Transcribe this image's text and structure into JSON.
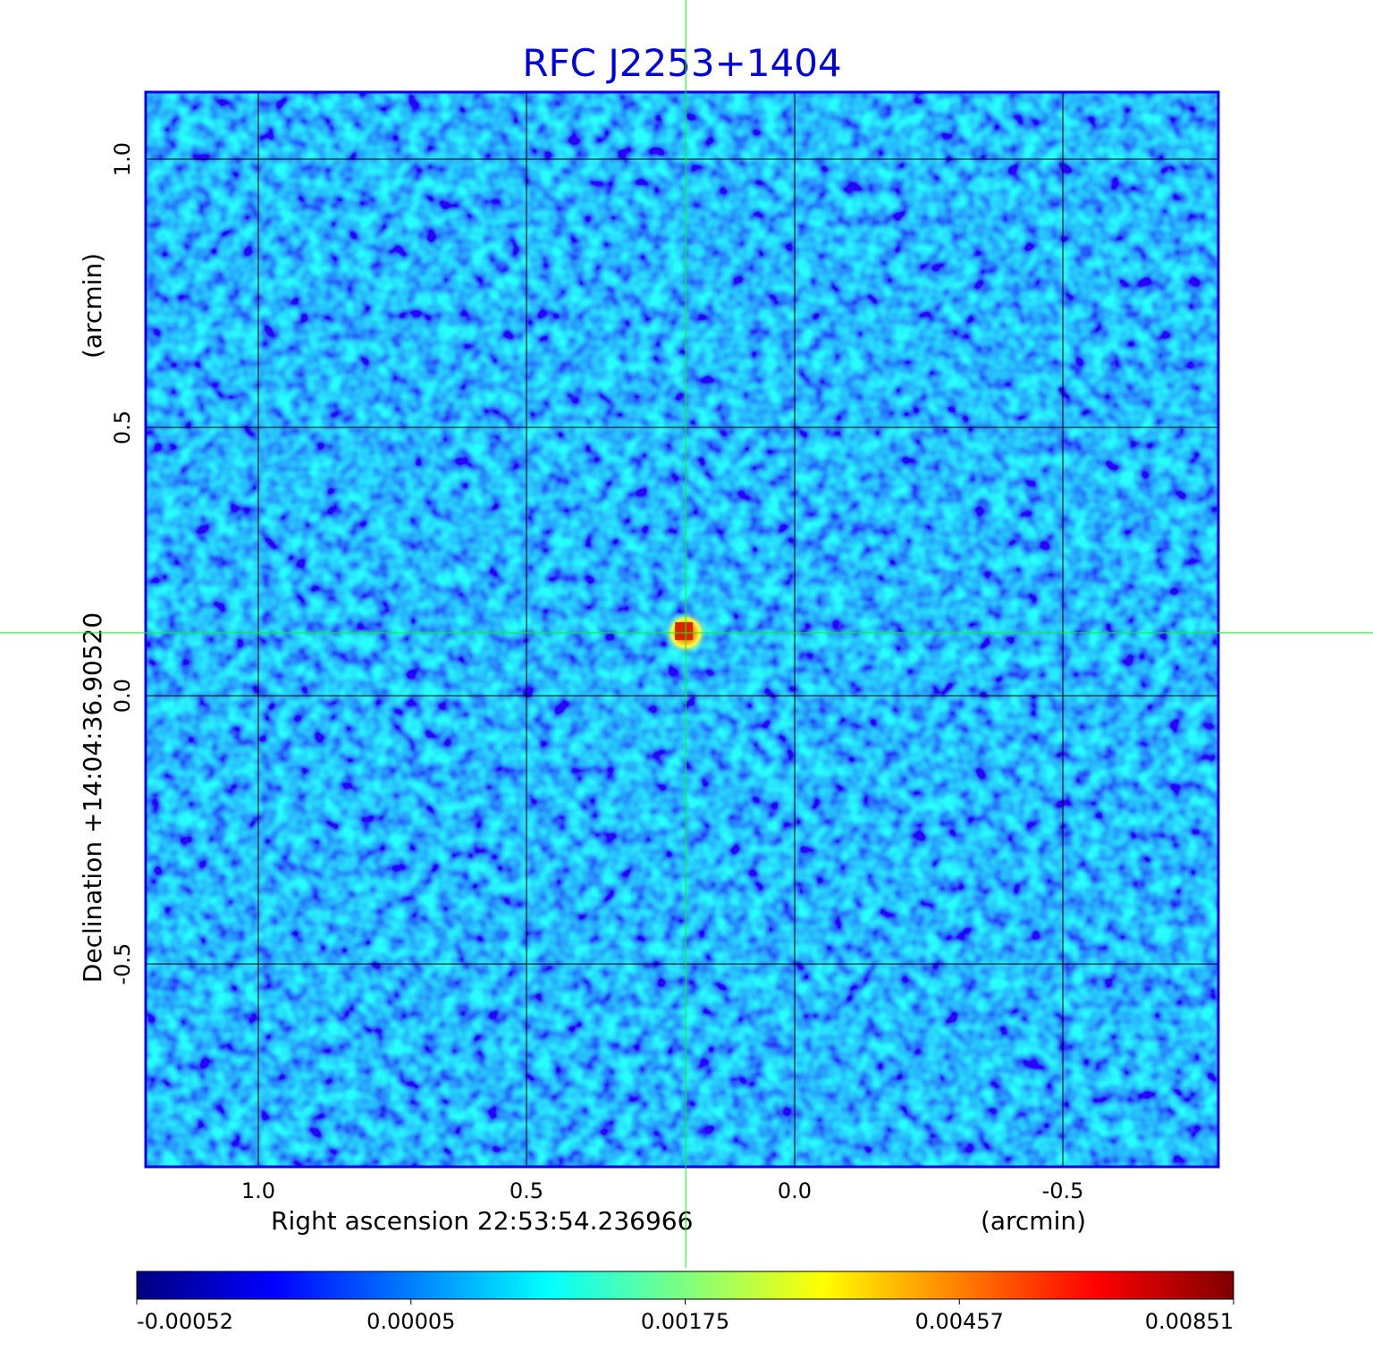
{
  "chart_data": {
    "type": "image",
    "title": "RFC J2253+1404",
    "x_label": "Right ascension  22:53:54.236966",
    "x_unit": "(arcmin)",
    "y_label": "Declination  +14:04:36.90520",
    "y_unit": "(arcmin)",
    "xlim": [
      1.21,
      -0.79
    ],
    "ylim": [
      -0.878,
      1.125
    ],
    "xticks": [
      {
        "value": 1,
        "label": "1.0"
      },
      0.5,
      {
        "value": 0,
        "label": "0.0"
      },
      -0.5
    ],
    "yticks": [
      -0.5,
      {
        "value": 0,
        "label": "0.0"
      },
      0.5,
      {
        "value": 1,
        "label": "1.0"
      }
    ],
    "grid": true,
    "grid_color": "#000000",
    "frame_color": "#0000ee",
    "title_color": "#0000dd",
    "crosshair": {
      "x": 0.203,
      "y": 0.117,
      "color": "#00ff00"
    },
    "colorbar": {
      "ticks": [
        -0.00052,
        5e-05,
        0.00175,
        0.00457,
        0.00851
      ],
      "colormap": [
        "#00007f",
        "#0000ff",
        "#007fff",
        "#00ffff",
        "#7fff7f",
        "#ffff00",
        "#ff7f00",
        "#ff0000",
        "#7f0000"
      ]
    }
  }
}
